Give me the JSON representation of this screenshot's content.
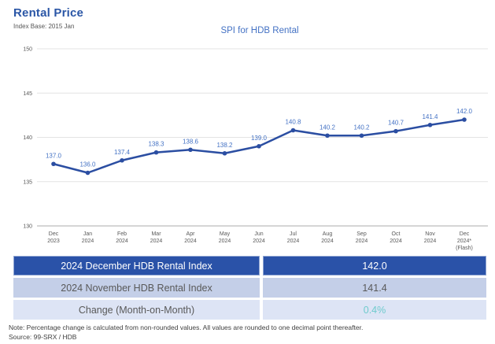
{
  "header": {
    "title": "Rental Price",
    "subtitle": "Index Base: 2015 Jan"
  },
  "chart_data": {
    "type": "line",
    "title": "SPI for HDB Rental",
    "categories": [
      "Dec 2023",
      "Jan 2024",
      "Feb 2024",
      "Mar 2024",
      "Apr 2024",
      "May 2024",
      "Jun 2024",
      "Jul 2024",
      "Aug 2024",
      "Sep 2024",
      "Oct 2024",
      "Nov 2024",
      "Dec 2024* (Flash)"
    ],
    "x_label_lines": [
      [
        "Dec",
        "2023"
      ],
      [
        "Jan",
        "2024"
      ],
      [
        "Feb",
        "2024"
      ],
      [
        "Mar",
        "2024"
      ],
      [
        "Apr",
        "2024"
      ],
      [
        "May",
        "2024"
      ],
      [
        "Jun",
        "2024"
      ],
      [
        "Jul",
        "2024"
      ],
      [
        "Aug",
        "2024"
      ],
      [
        "Sep",
        "2024"
      ],
      [
        "Oct",
        "2024"
      ],
      [
        "Nov",
        "2024"
      ],
      [
        "Dec",
        "2024*",
        "(Flash)"
      ]
    ],
    "values": [
      137.0,
      136.0,
      137.4,
      138.3,
      138.6,
      138.2,
      139.0,
      140.8,
      140.2,
      140.2,
      140.7,
      141.4,
      142.0
    ],
    "data_labels": [
      "137.0",
      "136.0",
      "137.4",
      "138.3",
      "138.6",
      "138.2",
      "139.0",
      "140.8",
      "140.2",
      "140.2",
      "140.7",
      "141.4",
      "142.0"
    ],
    "ylim": [
      130,
      150
    ],
    "y_ticks": [
      130,
      135,
      140,
      145,
      150
    ],
    "grid": true,
    "legend_position": "none",
    "line_color": "#2b4ea2",
    "marker_color": "#2b4ea2",
    "data_label_color": "#4472c4",
    "gridline_color": "#e3e3e3",
    "axis_line_color": "#ababab"
  },
  "table": {
    "rows": [
      {
        "label": "2024 December HDB Rental Index",
        "value": "142.0"
      },
      {
        "label": "2024 November HDB Rental Index",
        "value": "141.4"
      },
      {
        "label": "Change (Month-on-Month)",
        "value": "0.4%"
      }
    ]
  },
  "footer": {
    "note": "Note: Percentage change is calculated from non-rounded values.  All values are rounded to one decimal point thereafter.",
    "source": "Source: 99-SRX / HDB"
  },
  "colors": {
    "page_title": "#2a56a6",
    "chart_title": "#4472c4",
    "table_header_bg": "#2a52a8",
    "table_mid_bg": "#c4cfe8",
    "table_light_bg": "#dde4f5",
    "change_value": "#6fcbcd"
  }
}
